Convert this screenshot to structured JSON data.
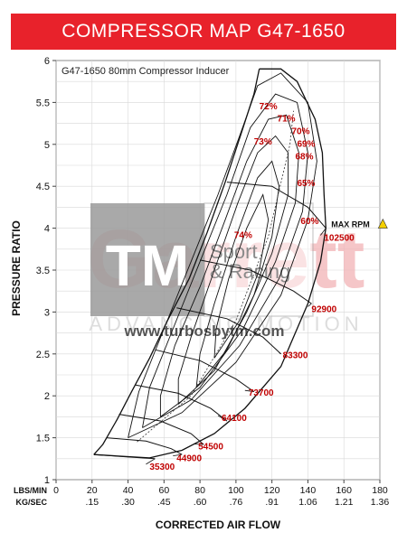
{
  "banner": {
    "title": "COMPRESSOR MAP  G47-1650"
  },
  "chart_data": {
    "type": "line",
    "title": "COMPRESSOR MAP  G47-1650",
    "subtitle": "G47-1650 80mm Compressor Inducer",
    "xlabel": "CORRECTED AIR FLOW",
    "ylabel": "PRESSURE RATIO",
    "xlim": [
      0,
      180
    ],
    "ylim": [
      1,
      6
    ],
    "grid": true,
    "x_row_labels": [
      "LBS/MIN",
      "KG/SEC"
    ],
    "x_ticks": [
      0,
      20,
      40,
      60,
      80,
      100,
      120,
      140,
      160,
      180
    ],
    "x_tick_labels": [
      "0",
      "20",
      "40",
      "60",
      "80",
      "100",
      "120",
      "140",
      "160",
      "180"
    ],
    "x_tick_labels_kgsec": [
      "",
      ".15",
      ".30",
      ".45",
      ".60",
      ".76",
      ".91",
      "1.06",
      "1.21",
      "1.36"
    ],
    "y_ticks": [
      1,
      1.5,
      2,
      2.5,
      3,
      3.5,
      4,
      4.5,
      5,
      5.5,
      6
    ],
    "y_tick_labels": [
      "1",
      "1.5",
      "2",
      "2.5",
      "3",
      "3.5",
      "4",
      "4.5",
      "5",
      "5.5",
      "6"
    ],
    "surge_line": [
      [
        21,
        1.3
      ],
      [
        26,
        1.42
      ],
      [
        34,
        1.72
      ],
      [
        42,
        2.05
      ],
      [
        52,
        2.45
      ],
      [
        62,
        2.9
      ],
      [
        74,
        3.4
      ],
      [
        84,
        3.95
      ],
      [
        94,
        4.55
      ],
      [
        104,
        5.2
      ],
      [
        110,
        5.6
      ],
      [
        113,
        5.9
      ]
    ],
    "choke_line": [
      [
        113,
        5.9
      ],
      [
        125,
        5.9
      ],
      [
        134,
        5.75
      ],
      [
        144,
        5.3
      ],
      [
        148,
        4.9
      ],
      [
        149,
        4.4
      ],
      [
        150,
        4.0
      ],
      [
        147,
        3.6
      ],
      [
        140,
        3.1
      ],
      [
        125,
        2.35
      ],
      [
        105,
        1.85
      ],
      [
        88,
        1.55
      ],
      [
        70,
        1.35
      ],
      [
        52,
        1.26
      ],
      [
        21,
        1.3
      ]
    ],
    "speed_lines": [
      {
        "name": "35300",
        "points": [
          [
            21,
            1.3
          ],
          [
            40,
            1.27
          ],
          [
            55,
            1.25
          ]
        ],
        "label_at": [
          52,
          1.12
        ]
      },
      {
        "name": "44900",
        "points": [
          [
            28,
            1.5
          ],
          [
            50,
            1.46
          ],
          [
            64,
            1.37
          ],
          [
            70,
            1.3
          ]
        ],
        "label_at": [
          67,
          1.22
        ]
      },
      {
        "name": "54500",
        "points": [
          [
            35,
            1.78
          ],
          [
            58,
            1.7
          ],
          [
            75,
            1.55
          ],
          [
            82,
            1.42
          ]
        ],
        "label_at": [
          79,
          1.36
        ]
      },
      {
        "name": "64100",
        "points": [
          [
            44,
            2.13
          ],
          [
            68,
            2.03
          ],
          [
            86,
            1.85
          ],
          [
            95,
            1.7
          ]
        ],
        "label_at": [
          92,
          1.7
        ]
      },
      {
        "name": "73700",
        "points": [
          [
            55,
            2.55
          ],
          [
            80,
            2.42
          ],
          [
            100,
            2.2
          ],
          [
            110,
            2.05
          ]
        ],
        "label_at": [
          107,
          2.0
        ]
      },
      {
        "name": "83300",
        "points": [
          [
            67,
            3.05
          ],
          [
            95,
            2.92
          ],
          [
            115,
            2.7
          ],
          [
            125,
            2.5
          ]
        ],
        "label_at": [
          126,
          2.45
        ]
      },
      {
        "name": "92900",
        "points": [
          [
            80,
            3.62
          ],
          [
            108,
            3.5
          ],
          [
            132,
            3.25
          ],
          [
            142,
            3.1
          ]
        ],
        "label_at": [
          142,
          3.0
        ]
      },
      {
        "name": "102500",
        "points": [
          [
            95,
            4.55
          ],
          [
            120,
            4.5
          ],
          [
            140,
            4.25
          ],
          [
            150,
            4.0
          ]
        ],
        "label_at": [
          149,
          3.85
        ]
      }
    ],
    "efficiency_islands": [
      {
        "name": "60%",
        "label_at": [
          141,
          4.05
        ]
      },
      {
        "name": "65%",
        "label_at": [
          139,
          4.5
        ]
      },
      {
        "name": "68%",
        "label_at": [
          138,
          4.82
        ]
      },
      {
        "name": "69%",
        "label_at": [
          139,
          4.97
        ]
      },
      {
        "name": "70%",
        "label_at": [
          136,
          5.12
        ]
      },
      {
        "name": "71%",
        "label_at": [
          128,
          5.27
        ]
      },
      {
        "name": "72%",
        "label_at": [
          118,
          5.42
        ]
      },
      {
        "name": "73%",
        "label_at": [
          115,
          5.0
        ]
      },
      {
        "name": "74%",
        "label_at": [
          104,
          3.88
        ]
      }
    ],
    "max_rpm": {
      "label": "MAX RPM",
      "value": "102500"
    },
    "watermark": {
      "brand": "Garrett",
      "tagline": "ADVANCING MOTION",
      "box_left": "TM",
      "box_right_line1": "Sport",
      "box_right_line2": "& Racing",
      "url": "www.turbosbytm.com"
    },
    "colors": {
      "banner": "#e8222b",
      "label_red": "#c00000",
      "warning": "#f5d000"
    }
  }
}
